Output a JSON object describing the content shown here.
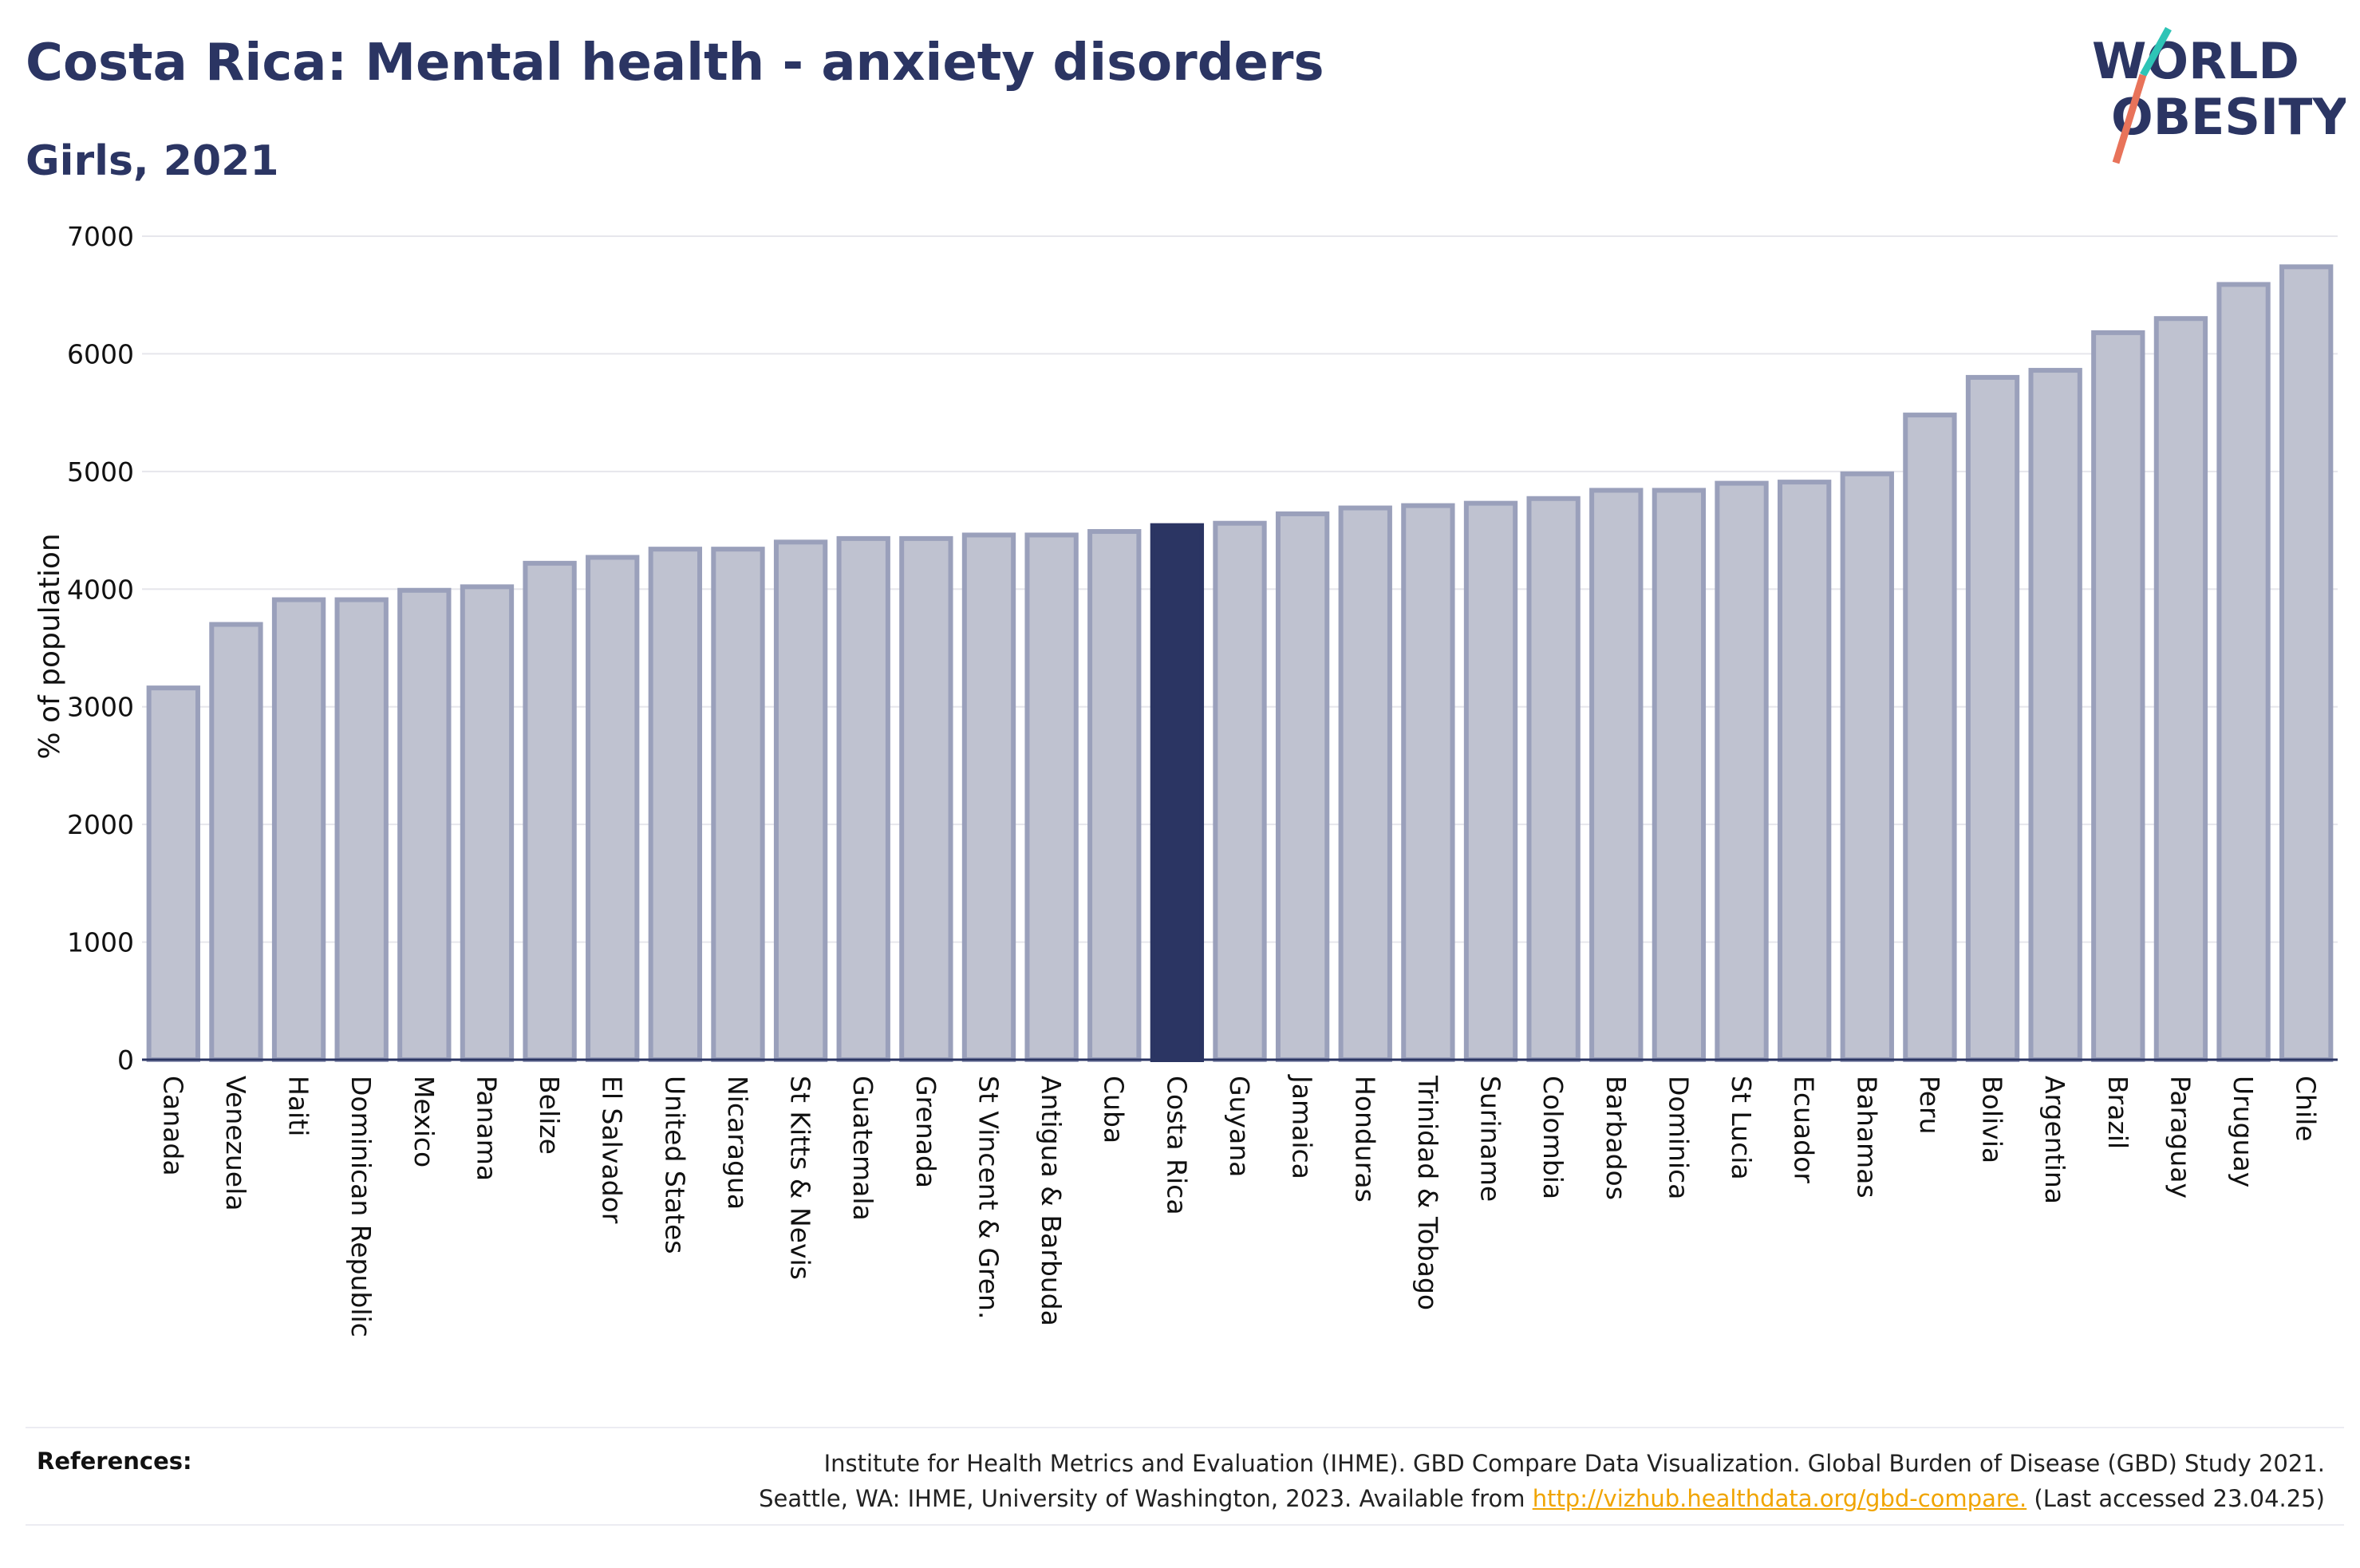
{
  "header": {
    "title": "Costa Rica: Mental health - anxiety disorders",
    "subtitle": "Girls, 2021"
  },
  "logo": {
    "line1": "WORLD",
    "line2": "OBESITY",
    "accent_colors": [
      "#2ec4b6",
      "#e8735a"
    ]
  },
  "references": {
    "label": "References:",
    "line1": "Institute for Health Metrics and Evaluation (IHME). GBD Compare Data Visualization. Global Burden of Disease (GBD) Study 2021.",
    "line2_prefix": "Seattle, WA: IHME, University of Washington, 2023. Available from",
    "link": "http://vizhub.healthdata.org/gbd-compare.",
    "line2_suffix": "(Last accessed 23.04.25)"
  },
  "colors": {
    "bar_default": "#bfc2d0",
    "bar_border": "#9aa0bb",
    "bar_highlight": "#2b3563",
    "text_primary": "#2b3563"
  },
  "chart_data": {
    "type": "bar",
    "title": "Costa Rica: Mental health - anxiety disorders",
    "subtitle": "Girls, 2021",
    "xlabel": "",
    "ylabel": "% of population",
    "ylim": [
      0,
      7000
    ],
    "yticks": [
      0,
      1000,
      2000,
      3000,
      4000,
      5000,
      6000,
      7000
    ],
    "grid": true,
    "highlight": "Costa Rica",
    "categories": [
      "Canada",
      "Venezuela",
      "Haiti",
      "Dominican Republic",
      "Mexico",
      "Panama",
      "Belize",
      "El Salvador",
      "United States",
      "Nicaragua",
      "St Kitts & Nevis",
      "Guatemala",
      "Grenada",
      "St Vincent & Gren.",
      "Antigua & Barbuda",
      "Cuba",
      "Costa Rica",
      "Guyana",
      "Jamaica",
      "Honduras",
      "Trinidad & Tobago",
      "Suriname",
      "Colombia",
      "Barbados",
      "Dominica",
      "St Lucia",
      "Ecuador",
      "Bahamas",
      "Peru",
      "Bolivia",
      "Argentina",
      "Brazil",
      "Paraguay",
      "Uruguay",
      "Chile"
    ],
    "values": [
      3160,
      3700,
      3910,
      3910,
      3990,
      4020,
      4220,
      4270,
      4340,
      4340,
      4400,
      4430,
      4430,
      4460,
      4460,
      4490,
      4540,
      4560,
      4640,
      4690,
      4710,
      4730,
      4770,
      4840,
      4840,
      4900,
      4910,
      4980,
      5480,
      5800,
      5860,
      6180,
      6300,
      6590,
      6740
    ]
  }
}
